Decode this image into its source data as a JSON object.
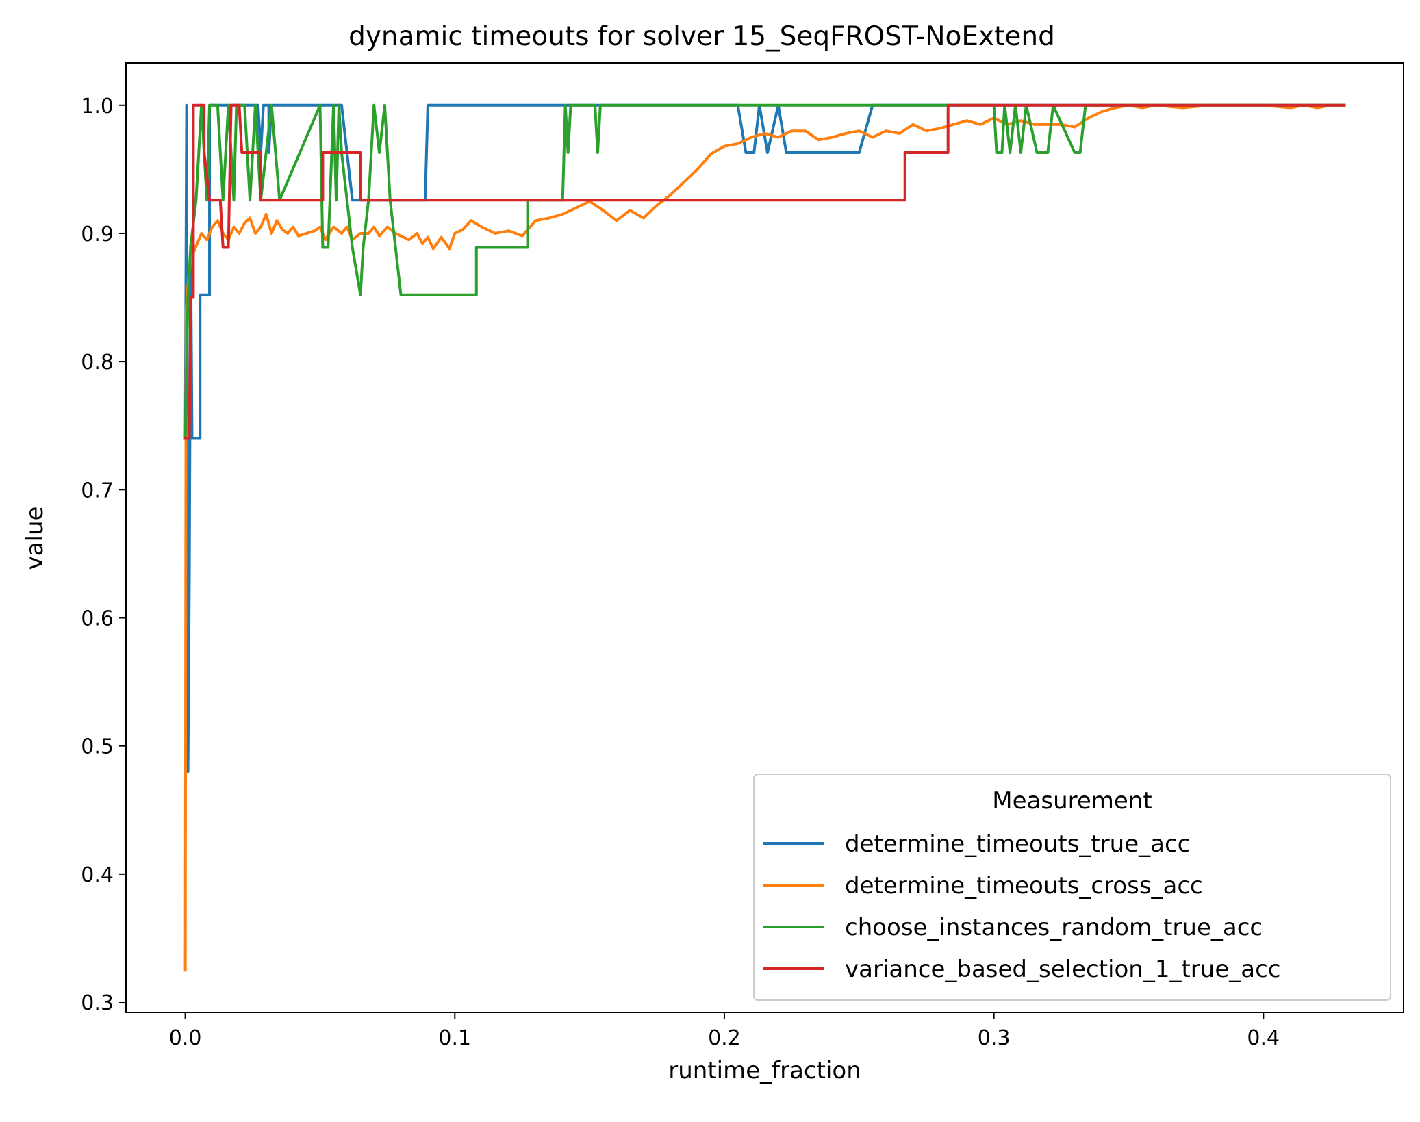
{
  "chart_data": {
    "type": "line",
    "title": "dynamic timeouts for solver 15_SeqFROST-NoExtend",
    "xlabel": "runtime_fraction",
    "ylabel": "value",
    "xlim": [
      -0.022,
      0.452
    ],
    "ylim": [
      0.292,
      1.033
    ],
    "xticks": [
      0.0,
      0.1,
      0.2,
      0.3,
      0.4
    ],
    "xtick_labels": [
      "0.0",
      "0.1",
      "0.2",
      "0.3",
      "0.4"
    ],
    "yticks": [
      0.3,
      0.4,
      0.5,
      0.6,
      0.7,
      0.8,
      0.9,
      1.0
    ],
    "ytick_labels": [
      "0.3",
      "0.4",
      "0.5",
      "0.6",
      "0.7",
      "0.8",
      "0.9",
      "1.0"
    ],
    "grid": false,
    "legend": {
      "title": "Measurement",
      "position": "lower-right"
    },
    "series": [
      {
        "name": "determine_timeouts_true_acc",
        "color": "#1f77b4",
        "points": [
          [
            0.0,
            0.74
          ],
          [
            0.0005,
            1.0
          ],
          [
            0.001,
            0.48
          ],
          [
            0.0015,
            0.63
          ],
          [
            0.002,
            0.89
          ],
          [
            0.0025,
            0.74
          ],
          [
            0.0055,
            0.74
          ],
          [
            0.0055,
            0.852
          ],
          [
            0.009,
            0.852
          ],
          [
            0.009,
            1.0
          ],
          [
            0.027,
            1.0
          ],
          [
            0.028,
            0.963
          ],
          [
            0.029,
            1.0
          ],
          [
            0.031,
            1.0
          ],
          [
            0.031,
            0.963
          ],
          [
            0.032,
            1.0
          ],
          [
            0.058,
            1.0
          ],
          [
            0.062,
            0.926
          ],
          [
            0.089,
            0.926
          ],
          [
            0.09,
            1.0
          ],
          [
            0.205,
            1.0
          ],
          [
            0.208,
            0.963
          ],
          [
            0.211,
            0.963
          ],
          [
            0.213,
            1.0
          ],
          [
            0.216,
            0.963
          ],
          [
            0.22,
            1.0
          ],
          [
            0.223,
            0.963
          ],
          [
            0.25,
            0.963
          ],
          [
            0.255,
            1.0
          ],
          [
            0.43,
            1.0
          ]
        ]
      },
      {
        "name": "determine_timeouts_cross_acc",
        "color": "#ff7f0e",
        "points": [
          [
            0.0,
            0.325
          ],
          [
            0.0003,
            0.84
          ],
          [
            0.001,
            0.86
          ],
          [
            0.002,
            0.88
          ],
          [
            0.004,
            0.89
          ],
          [
            0.006,
            0.9
          ],
          [
            0.008,
            0.895
          ],
          [
            0.01,
            0.905
          ],
          [
            0.012,
            0.91
          ],
          [
            0.014,
            0.9
          ],
          [
            0.016,
            0.895
          ],
          [
            0.018,
            0.905
          ],
          [
            0.02,
            0.9
          ],
          [
            0.022,
            0.908
          ],
          [
            0.024,
            0.912
          ],
          [
            0.026,
            0.9
          ],
          [
            0.028,
            0.905
          ],
          [
            0.03,
            0.915
          ],
          [
            0.032,
            0.9
          ],
          [
            0.034,
            0.91
          ],
          [
            0.036,
            0.903
          ],
          [
            0.038,
            0.9
          ],
          [
            0.04,
            0.905
          ],
          [
            0.042,
            0.898
          ],
          [
            0.045,
            0.9
          ],
          [
            0.048,
            0.902
          ],
          [
            0.05,
            0.905
          ],
          [
            0.052,
            0.895
          ],
          [
            0.055,
            0.905
          ],
          [
            0.058,
            0.9
          ],
          [
            0.06,
            0.905
          ],
          [
            0.062,
            0.895
          ],
          [
            0.065,
            0.9
          ],
          [
            0.068,
            0.9
          ],
          [
            0.07,
            0.905
          ],
          [
            0.072,
            0.898
          ],
          [
            0.075,
            0.905
          ],
          [
            0.078,
            0.9
          ],
          [
            0.08,
            0.898
          ],
          [
            0.083,
            0.895
          ],
          [
            0.086,
            0.9
          ],
          [
            0.088,
            0.892
          ],
          [
            0.09,
            0.897
          ],
          [
            0.092,
            0.888
          ],
          [
            0.095,
            0.897
          ],
          [
            0.098,
            0.888
          ],
          [
            0.1,
            0.9
          ],
          [
            0.103,
            0.903
          ],
          [
            0.106,
            0.91
          ],
          [
            0.11,
            0.905
          ],
          [
            0.115,
            0.9
          ],
          [
            0.12,
            0.902
          ],
          [
            0.125,
            0.898
          ],
          [
            0.13,
            0.91
          ],
          [
            0.135,
            0.912
          ],
          [
            0.14,
            0.915
          ],
          [
            0.145,
            0.92
          ],
          [
            0.15,
            0.925
          ],
          [
            0.155,
            0.918
          ],
          [
            0.16,
            0.91
          ],
          [
            0.165,
            0.918
          ],
          [
            0.17,
            0.912
          ],
          [
            0.175,
            0.922
          ],
          [
            0.18,
            0.93
          ],
          [
            0.185,
            0.94
          ],
          [
            0.19,
            0.95
          ],
          [
            0.195,
            0.962
          ],
          [
            0.2,
            0.968
          ],
          [
            0.205,
            0.97
          ],
          [
            0.21,
            0.975
          ],
          [
            0.215,
            0.978
          ],
          [
            0.22,
            0.975
          ],
          [
            0.225,
            0.98
          ],
          [
            0.23,
            0.98
          ],
          [
            0.235,
            0.973
          ],
          [
            0.24,
            0.975
          ],
          [
            0.245,
            0.978
          ],
          [
            0.25,
            0.98
          ],
          [
            0.255,
            0.975
          ],
          [
            0.26,
            0.98
          ],
          [
            0.265,
            0.978
          ],
          [
            0.27,
            0.985
          ],
          [
            0.275,
            0.98
          ],
          [
            0.28,
            0.982
          ],
          [
            0.285,
            0.985
          ],
          [
            0.29,
            0.988
          ],
          [
            0.295,
            0.985
          ],
          [
            0.3,
            0.99
          ],
          [
            0.305,
            0.985
          ],
          [
            0.31,
            0.988
          ],
          [
            0.315,
            0.985
          ],
          [
            0.32,
            0.985
          ],
          [
            0.325,
            0.985
          ],
          [
            0.33,
            0.983
          ],
          [
            0.335,
            0.99
          ],
          [
            0.34,
            0.995
          ],
          [
            0.345,
            0.998
          ],
          [
            0.35,
            1.0
          ],
          [
            0.355,
            0.998
          ],
          [
            0.36,
            1.0
          ],
          [
            0.37,
            0.998
          ],
          [
            0.38,
            1.0
          ],
          [
            0.39,
            1.0
          ],
          [
            0.4,
            1.0
          ],
          [
            0.41,
            0.998
          ],
          [
            0.415,
            1.0
          ],
          [
            0.42,
            0.998
          ],
          [
            0.425,
            1.0
          ],
          [
            0.43,
            1.0
          ]
        ]
      },
      {
        "name": "choose_instances_random_true_acc",
        "color": "#2ca02c",
        "points": [
          [
            0.0,
            0.74
          ],
          [
            0.001,
            0.85
          ],
          [
            0.002,
            0.89
          ],
          [
            0.004,
            0.926
          ],
          [
            0.006,
            1.0
          ],
          [
            0.007,
            0.963
          ],
          [
            0.008,
            0.926
          ],
          [
            0.009,
            1.0
          ],
          [
            0.012,
            1.0
          ],
          [
            0.014,
            0.926
          ],
          [
            0.016,
            1.0
          ],
          [
            0.018,
            0.926
          ],
          [
            0.019,
            1.0
          ],
          [
            0.022,
            1.0
          ],
          [
            0.024,
            0.926
          ],
          [
            0.026,
            1.0
          ],
          [
            0.028,
            0.926
          ],
          [
            0.032,
            1.0
          ],
          [
            0.035,
            0.926
          ],
          [
            0.05,
            1.0
          ],
          [
            0.051,
            0.889
          ],
          [
            0.053,
            0.889
          ],
          [
            0.055,
            1.0
          ],
          [
            0.056,
            0.926
          ],
          [
            0.057,
            1.0
          ],
          [
            0.058,
            0.963
          ],
          [
            0.06,
            0.926
          ],
          [
            0.062,
            0.889
          ],
          [
            0.065,
            0.852
          ],
          [
            0.066,
            0.889
          ],
          [
            0.068,
            0.926
          ],
          [
            0.07,
            1.0
          ],
          [
            0.072,
            0.963
          ],
          [
            0.074,
            1.0
          ],
          [
            0.076,
            0.926
          ],
          [
            0.08,
            0.852
          ],
          [
            0.108,
            0.852
          ],
          [
            0.108,
            0.889
          ],
          [
            0.127,
            0.889
          ],
          [
            0.127,
            0.926
          ],
          [
            0.14,
            0.926
          ],
          [
            0.141,
            1.0
          ],
          [
            0.142,
            0.963
          ],
          [
            0.143,
            1.0
          ],
          [
            0.152,
            1.0
          ],
          [
            0.153,
            0.963
          ],
          [
            0.154,
            1.0
          ],
          [
            0.3,
            1.0
          ],
          [
            0.301,
            0.963
          ],
          [
            0.303,
            0.963
          ],
          [
            0.304,
            1.0
          ],
          [
            0.306,
            0.963
          ],
          [
            0.308,
            1.0
          ],
          [
            0.31,
            0.963
          ],
          [
            0.312,
            1.0
          ],
          [
            0.316,
            0.963
          ],
          [
            0.32,
            0.963
          ],
          [
            0.322,
            1.0
          ],
          [
            0.33,
            0.963
          ],
          [
            0.332,
            0.963
          ],
          [
            0.334,
            1.0
          ],
          [
            0.43,
            1.0
          ]
        ]
      },
      {
        "name": "variance_based_selection_1_true_acc",
        "color": "#d62728",
        "points": [
          [
            0.0,
            0.74
          ],
          [
            0.0015,
            0.74
          ],
          [
            0.002,
            0.85
          ],
          [
            0.003,
            0.85
          ],
          [
            0.003,
            1.0
          ],
          [
            0.007,
            1.0
          ],
          [
            0.007,
            0.963
          ],
          [
            0.009,
            0.926
          ],
          [
            0.013,
            0.926
          ],
          [
            0.014,
            0.889
          ],
          [
            0.016,
            0.889
          ],
          [
            0.017,
            1.0
          ],
          [
            0.02,
            1.0
          ],
          [
            0.021,
            0.963
          ],
          [
            0.028,
            0.963
          ],
          [
            0.028,
            0.926
          ],
          [
            0.051,
            0.926
          ],
          [
            0.051,
            0.963
          ],
          [
            0.065,
            0.963
          ],
          [
            0.065,
            0.926
          ],
          [
            0.267,
            0.926
          ],
          [
            0.267,
            0.963
          ],
          [
            0.283,
            0.963
          ],
          [
            0.283,
            1.0
          ],
          [
            0.43,
            1.0
          ]
        ]
      }
    ]
  }
}
